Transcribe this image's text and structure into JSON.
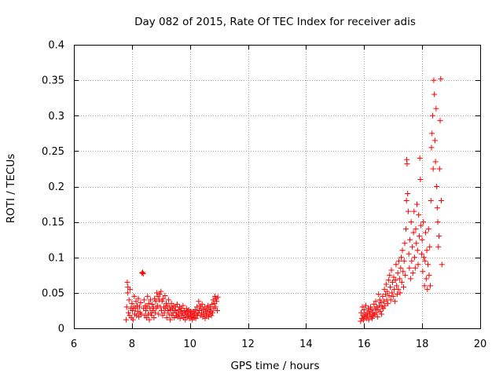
{
  "chart_data": {
    "type": "scatter",
    "title": "Day 082 of 2015, Rate Of TEC Index for receiver adis",
    "xlabel": "GPS time / hours",
    "ylabel": "ROTI / TECUs",
    "xlim": [
      6,
      20
    ],
    "ylim": [
      0,
      0.4
    ],
    "grid": true,
    "marker": "+",
    "color": "#ff0000",
    "x_ticks": [
      {
        "value": 6,
        "label": "6"
      },
      {
        "value": 8,
        "label": "8"
      },
      {
        "value": 10,
        "label": "10"
      },
      {
        "value": 12,
        "label": "12"
      },
      {
        "value": 14,
        "label": "14"
      },
      {
        "value": 16,
        "label": "16"
      },
      {
        "value": 18,
        "label": "18"
      },
      {
        "value": 20,
        "label": "20"
      }
    ],
    "y_ticks": [
      {
        "value": 0,
        "label": "0"
      },
      {
        "value": 0.05,
        "label": "0.05"
      },
      {
        "value": 0.1,
        "label": "0.1"
      },
      {
        "value": 0.15,
        "label": "0.15"
      },
      {
        "value": 0.2,
        "label": "0.2"
      },
      {
        "value": 0.25,
        "label": "0.25"
      },
      {
        "value": 0.3,
        "label": "0.3"
      },
      {
        "value": 0.35,
        "label": "0.35"
      },
      {
        "value": 0.4,
        "label": "0.4"
      }
    ],
    "series": [
      {
        "name": "ROTI",
        "points": [
          [
            7.8,
            0.012
          ],
          [
            7.82,
            0.03
          ],
          [
            7.84,
            0.065
          ],
          [
            7.85,
            0.05
          ],
          [
            7.86,
            0.058
          ],
          [
            7.88,
            0.022
          ],
          [
            7.9,
            0.04
          ],
          [
            7.92,
            0.018
          ],
          [
            7.94,
            0.055
          ],
          [
            7.96,
            0.028
          ],
          [
            7.98,
            0.015
          ],
          [
            8.0,
            0.035
          ],
          [
            8.02,
            0.025
          ],
          [
            8.04,
            0.012
          ],
          [
            8.06,
            0.03
          ],
          [
            8.08,
            0.045
          ],
          [
            8.1,
            0.02
          ],
          [
            8.12,
            0.028
          ],
          [
            8.14,
            0.038
          ],
          [
            8.16,
            0.018
          ],
          [
            8.18,
            0.032
          ],
          [
            8.2,
            0.024
          ],
          [
            8.22,
            0.042
          ],
          [
            8.24,
            0.016
          ],
          [
            8.26,
            0.03
          ],
          [
            8.28,
            0.022
          ],
          [
            8.3,
            0.036
          ],
          [
            8.32,
            0.02
          ],
          [
            8.35,
            0.078
          ],
          [
            8.37,
            0.079
          ],
          [
            8.39,
            0.077
          ],
          [
            8.4,
            0.028
          ],
          [
            8.42,
            0.04
          ],
          [
            8.44,
            0.018
          ],
          [
            8.46,
            0.032
          ],
          [
            8.48,
            0.025
          ],
          [
            8.5,
            0.015
          ],
          [
            8.52,
            0.03
          ],
          [
            8.54,
            0.045
          ],
          [
            8.56,
            0.02
          ],
          [
            8.58,
            0.035
          ],
          [
            8.6,
            0.012
          ],
          [
            8.62,
            0.028
          ],
          [
            8.64,
            0.04
          ],
          [
            8.66,
            0.022
          ],
          [
            8.68,
            0.018
          ],
          [
            8.7,
            0.034
          ],
          [
            8.72,
            0.025
          ],
          [
            8.74,
            0.03
          ],
          [
            8.76,
            0.015
          ],
          [
            8.78,
            0.042
          ],
          [
            8.8,
            0.022
          ],
          [
            8.82,
            0.038
          ],
          [
            8.84,
            0.028
          ],
          [
            8.86,
            0.05
          ],
          [
            8.88,
            0.032
          ],
          [
            8.9,
            0.045
          ],
          [
            8.92,
            0.02
          ],
          [
            8.94,
            0.04
          ],
          [
            8.96,
            0.048
          ],
          [
            8.98,
            0.03
          ],
          [
            9.0,
            0.052
          ],
          [
            9.02,
            0.025
          ],
          [
            9.04,
            0.038
          ],
          [
            9.06,
            0.018
          ],
          [
            9.08,
            0.042
          ],
          [
            9.1,
            0.03
          ],
          [
            9.12,
            0.022
          ],
          [
            9.14,
            0.046
          ],
          [
            9.16,
            0.028
          ],
          [
            9.18,
            0.035
          ],
          [
            9.2,
            0.015
          ],
          [
            9.22,
            0.032
          ],
          [
            9.24,
            0.025
          ],
          [
            9.26,
            0.04
          ],
          [
            9.28,
            0.02
          ],
          [
            9.3,
            0.03
          ],
          [
            9.32,
            0.012
          ],
          [
            9.34,
            0.026
          ],
          [
            9.36,
            0.035
          ],
          [
            9.38,
            0.018
          ],
          [
            9.4,
            0.028
          ],
          [
            9.42,
            0.022
          ],
          [
            9.44,
            0.032
          ],
          [
            9.46,
            0.015
          ],
          [
            9.48,
            0.025
          ],
          [
            9.5,
            0.03
          ],
          [
            9.52,
            0.018
          ],
          [
            9.54,
            0.022
          ],
          [
            9.56,
            0.034
          ],
          [
            9.58,
            0.016
          ],
          [
            9.6,
            0.026
          ],
          [
            9.62,
            0.02
          ],
          [
            9.64,
            0.03
          ],
          [
            9.66,
            0.014
          ],
          [
            9.68,
            0.024
          ],
          [
            9.7,
            0.028
          ],
          [
            9.72,
            0.018
          ],
          [
            9.74,
            0.022
          ],
          [
            9.76,
            0.032
          ],
          [
            9.78,
            0.015
          ],
          [
            9.8,
            0.025
          ],
          [
            9.82,
            0.02
          ],
          [
            9.84,
            0.012
          ],
          [
            9.86,
            0.022
          ],
          [
            9.88,
            0.028
          ],
          [
            9.9,
            0.016
          ],
          [
            9.92,
            0.024
          ],
          [
            9.94,
            0.018
          ],
          [
            9.96,
            0.026
          ],
          [
            9.98,
            0.014
          ],
          [
            10.0,
            0.02
          ],
          [
            10.02,
            0.024
          ],
          [
            10.04,
            0.016
          ],
          [
            10.06,
            0.022
          ],
          [
            10.08,
            0.012
          ],
          [
            10.1,
            0.018
          ],
          [
            10.12,
            0.024
          ],
          [
            10.14,
            0.015
          ],
          [
            10.16,
            0.02
          ],
          [
            10.18,
            0.026
          ],
          [
            10.2,
            0.014
          ],
          [
            10.22,
            0.02
          ],
          [
            10.24,
            0.03
          ],
          [
            10.26,
            0.018
          ],
          [
            10.28,
            0.022
          ],
          [
            10.3,
            0.038
          ],
          [
            10.32,
            0.025
          ],
          [
            10.34,
            0.032
          ],
          [
            10.36,
            0.018
          ],
          [
            10.38,
            0.028
          ],
          [
            10.4,
            0.022
          ],
          [
            10.42,
            0.034
          ],
          [
            10.44,
            0.016
          ],
          [
            10.46,
            0.026
          ],
          [
            10.48,
            0.02
          ],
          [
            10.5,
            0.03
          ],
          [
            10.52,
            0.014
          ],
          [
            10.54,
            0.024
          ],
          [
            10.56,
            0.018
          ],
          [
            10.58,
            0.028
          ],
          [
            10.6,
            0.022
          ],
          [
            10.62,
            0.032
          ],
          [
            10.64,
            0.016
          ],
          [
            10.66,
            0.026
          ],
          [
            10.68,
            0.02
          ],
          [
            10.7,
            0.03
          ],
          [
            10.72,
            0.024
          ],
          [
            10.74,
            0.018
          ],
          [
            10.76,
            0.034
          ],
          [
            10.78,
            0.022
          ],
          [
            10.8,
            0.04
          ],
          [
            10.82,
            0.028
          ],
          [
            10.84,
            0.035
          ],
          [
            10.86,
            0.045
          ],
          [
            10.88,
            0.03
          ],
          [
            10.9,
            0.042
          ],
          [
            10.92,
            0.038
          ],
          [
            10.94,
            0.025
          ],
          [
            10.96,
            0.044
          ],
          [
            15.88,
            0.01
          ],
          [
            15.9,
            0.022
          ],
          [
            15.92,
            0.014
          ],
          [
            15.94,
            0.03
          ],
          [
            15.96,
            0.018
          ],
          [
            15.98,
            0.012
          ],
          [
            16.0,
            0.026
          ],
          [
            16.02,
            0.016
          ],
          [
            16.04,
            0.02
          ],
          [
            16.06,
            0.032
          ],
          [
            16.08,
            0.014
          ],
          [
            16.1,
            0.022
          ],
          [
            16.12,
            0.018
          ],
          [
            16.14,
            0.028
          ],
          [
            16.16,
            0.012
          ],
          [
            16.18,
            0.024
          ],
          [
            16.2,
            0.02
          ],
          [
            16.22,
            0.03
          ],
          [
            16.24,
            0.016
          ],
          [
            16.26,
            0.026
          ],
          [
            16.28,
            0.014
          ],
          [
            16.3,
            0.022
          ],
          [
            16.32,
            0.018
          ],
          [
            16.34,
            0.034
          ],
          [
            16.36,
            0.02
          ],
          [
            16.38,
            0.028
          ],
          [
            16.4,
            0.038
          ],
          [
            16.42,
            0.022
          ],
          [
            16.44,
            0.03
          ],
          [
            16.46,
            0.016
          ],
          [
            16.48,
            0.026
          ],
          [
            16.5,
            0.048
          ],
          [
            16.52,
            0.032
          ],
          [
            16.54,
            0.04
          ],
          [
            16.56,
            0.024
          ],
          [
            16.58,
            0.036
          ],
          [
            16.6,
            0.02
          ],
          [
            16.62,
            0.03
          ],
          [
            16.64,
            0.045
          ],
          [
            16.66,
            0.028
          ],
          [
            16.68,
            0.038
          ],
          [
            16.7,
            0.055
          ],
          [
            16.72,
            0.032
          ],
          [
            16.74,
            0.048
          ],
          [
            16.76,
            0.062
          ],
          [
            16.78,
            0.04
          ],
          [
            16.8,
            0.052
          ],
          [
            16.82,
            0.035
          ],
          [
            16.84,
            0.068
          ],
          [
            16.86,
            0.046
          ],
          [
            16.88,
            0.075
          ],
          [
            16.9,
            0.058
          ],
          [
            16.92,
            0.04
          ],
          [
            16.94,
            0.082
          ],
          [
            16.96,
            0.05
          ],
          [
            16.98,
            0.065
          ],
          [
            17.0,
            0.045
          ],
          [
            17.02,
            0.072
          ],
          [
            17.04,
            0.055
          ],
          [
            17.06,
            0.038
          ],
          [
            17.08,
            0.068
          ],
          [
            17.1,
            0.09
          ],
          [
            17.12,
            0.06
          ],
          [
            17.14,
            0.048
          ],
          [
            17.16,
            0.078
          ],
          [
            17.18,
            0.055
          ],
          [
            17.2,
            0.095
          ],
          [
            17.22,
            0.07
          ],
          [
            17.24,
            0.05
          ],
          [
            17.26,
            0.085
          ],
          [
            17.28,
            0.1
          ],
          [
            17.3,
            0.065
          ],
          [
            17.32,
            0.11
          ],
          [
            17.34,
            0.08
          ],
          [
            17.36,
            0.058
          ],
          [
            17.38,
            0.095
          ],
          [
            17.4,
            0.12
          ],
          [
            17.42,
            0.075
          ],
          [
            17.44,
            0.14
          ],
          [
            17.46,
            0.18
          ],
          [
            17.47,
            0.238
          ],
          [
            17.48,
            0.232
          ],
          [
            17.5,
            0.19
          ],
          [
            17.52,
            0.165
          ],
          [
            17.54,
            0.105
          ],
          [
            17.56,
            0.085
          ],
          [
            17.58,
            0.125
          ],
          [
            17.6,
            0.07
          ],
          [
            17.62,
            0.15
          ],
          [
            17.64,
            0.095
          ],
          [
            17.66,
            0.115
          ],
          [
            17.68,
            0.078
          ],
          [
            17.7,
            0.135
          ],
          [
            17.72,
            0.165
          ],
          [
            17.74,
            0.1
          ],
          [
            17.76,
            0.085
          ],
          [
            17.78,
            0.14
          ],
          [
            17.8,
            0.12
          ],
          [
            17.82,
            0.175
          ],
          [
            17.84,
            0.11
          ],
          [
            17.86,
            0.09
          ],
          [
            17.88,
            0.16
          ],
          [
            17.9,
            0.13
          ],
          [
            17.92,
            0.24
          ],
          [
            17.94,
            0.21
          ],
          [
            17.96,
            0.145
          ],
          [
            17.98,
            0.105
          ],
          [
            18.0,
            0.125
          ],
          [
            18.02,
            0.08
          ],
          [
            18.04,
            0.15
          ],
          [
            18.06,
            0.1
          ],
          [
            18.08,
            0.06
          ],
          [
            18.1,
            0.095
          ],
          [
            18.12,
            0.135
          ],
          [
            18.14,
            0.07
          ],
          [
            18.16,
            0.11
          ],
          [
            18.18,
            0.055
          ],
          [
            18.2,
            0.09
          ],
          [
            18.22,
            0.14
          ],
          [
            18.24,
            0.075
          ],
          [
            18.26,
            0.115
          ],
          [
            18.28,
            0.06
          ],
          [
            18.3,
            0.18
          ],
          [
            18.32,
            0.255
          ],
          [
            18.34,
            0.275
          ],
          [
            18.36,
            0.3
          ],
          [
            18.38,
            0.225
          ],
          [
            18.4,
            0.35
          ],
          [
            18.42,
            0.33
          ],
          [
            18.44,
            0.265
          ],
          [
            18.46,
            0.235
          ],
          [
            18.48,
            0.31
          ],
          [
            18.5,
            0.2
          ],
          [
            18.52,
            0.17
          ],
          [
            18.54,
            0.15
          ],
          [
            18.56,
            0.115
          ],
          [
            18.58,
            0.13
          ],
          [
            18.6,
            0.225
          ],
          [
            18.62,
            0.293
          ],
          [
            18.64,
            0.352
          ],
          [
            18.66,
            0.18
          ],
          [
            18.68,
            0.09
          ]
        ]
      }
    ]
  }
}
